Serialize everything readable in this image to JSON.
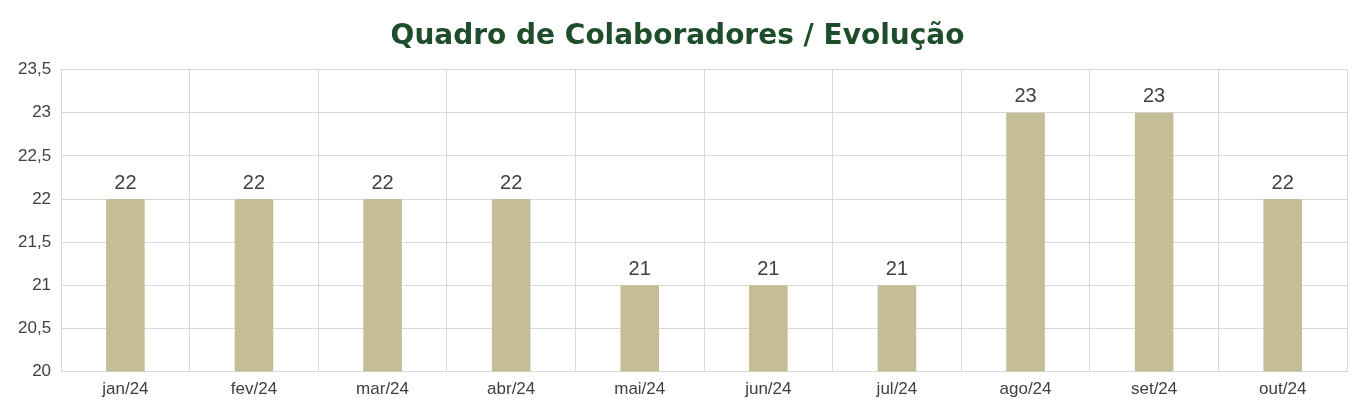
{
  "chart_data": {
    "type": "bar",
    "title": "Quadro de Colaboradores / Evolução",
    "categories": [
      "jan/24",
      "fev/24",
      "mar/24",
      "abr/24",
      "mai/24",
      "jun/24",
      "jul/24",
      "ago/24",
      "set/24",
      "out/24"
    ],
    "values": [
      22,
      22,
      22,
      22,
      21,
      21,
      21,
      23,
      23,
      22
    ],
    "color": "#c4bd97",
    "ylim": [
      20,
      23.5
    ],
    "yticks": [
      20,
      {
        "value": 20.5,
        "label": "20,5"
      },
      21,
      {
        "value": 21.5,
        "label": "21,5"
      },
      22,
      {
        "value": 22.5,
        "label": "22,5"
      },
      23,
      {
        "value": 23.5,
        "label": "23,5"
      }
    ],
    "grid": true,
    "data_labels": true,
    "legend": false
  }
}
